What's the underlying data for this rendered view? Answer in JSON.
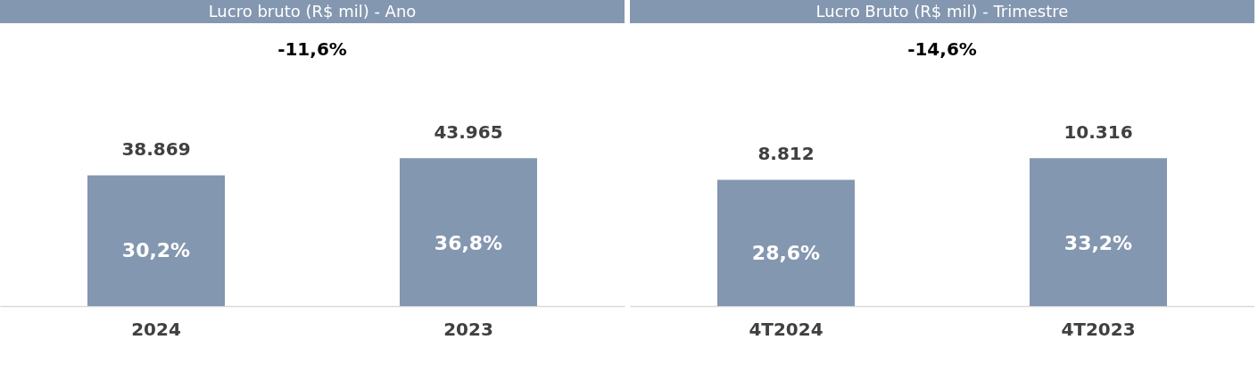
{
  "chart_data": [
    {
      "type": "bar",
      "title": "Lucro bruto (R$ mil) - Ano",
      "categories": [
        "2024",
        "2023"
      ],
      "values": [
        38869,
        43965
      ],
      "color": "#8497b0",
      "data_labels": true,
      "value_labels": [
        "38.869",
        "43.965"
      ],
      "tick_labels": "x",
      "annotations": [
        "-11,6%",
        "30,2%",
        "36,8%"
      ]
    },
    {
      "type": "bar",
      "title": "Lucro Bruto (R$ mil) - Trimestre",
      "categories": [
        "4T2024",
        "4T2023"
      ],
      "values": [
        8812,
        10316
      ],
      "color": "#8497b0",
      "data_labels": true,
      "value_labels": [
        "8.812",
        "10.316"
      ],
      "tick_labels": "x",
      "annotations": [
        "-14,6%",
        "28,6%",
        "33,2%"
      ]
    }
  ]
}
